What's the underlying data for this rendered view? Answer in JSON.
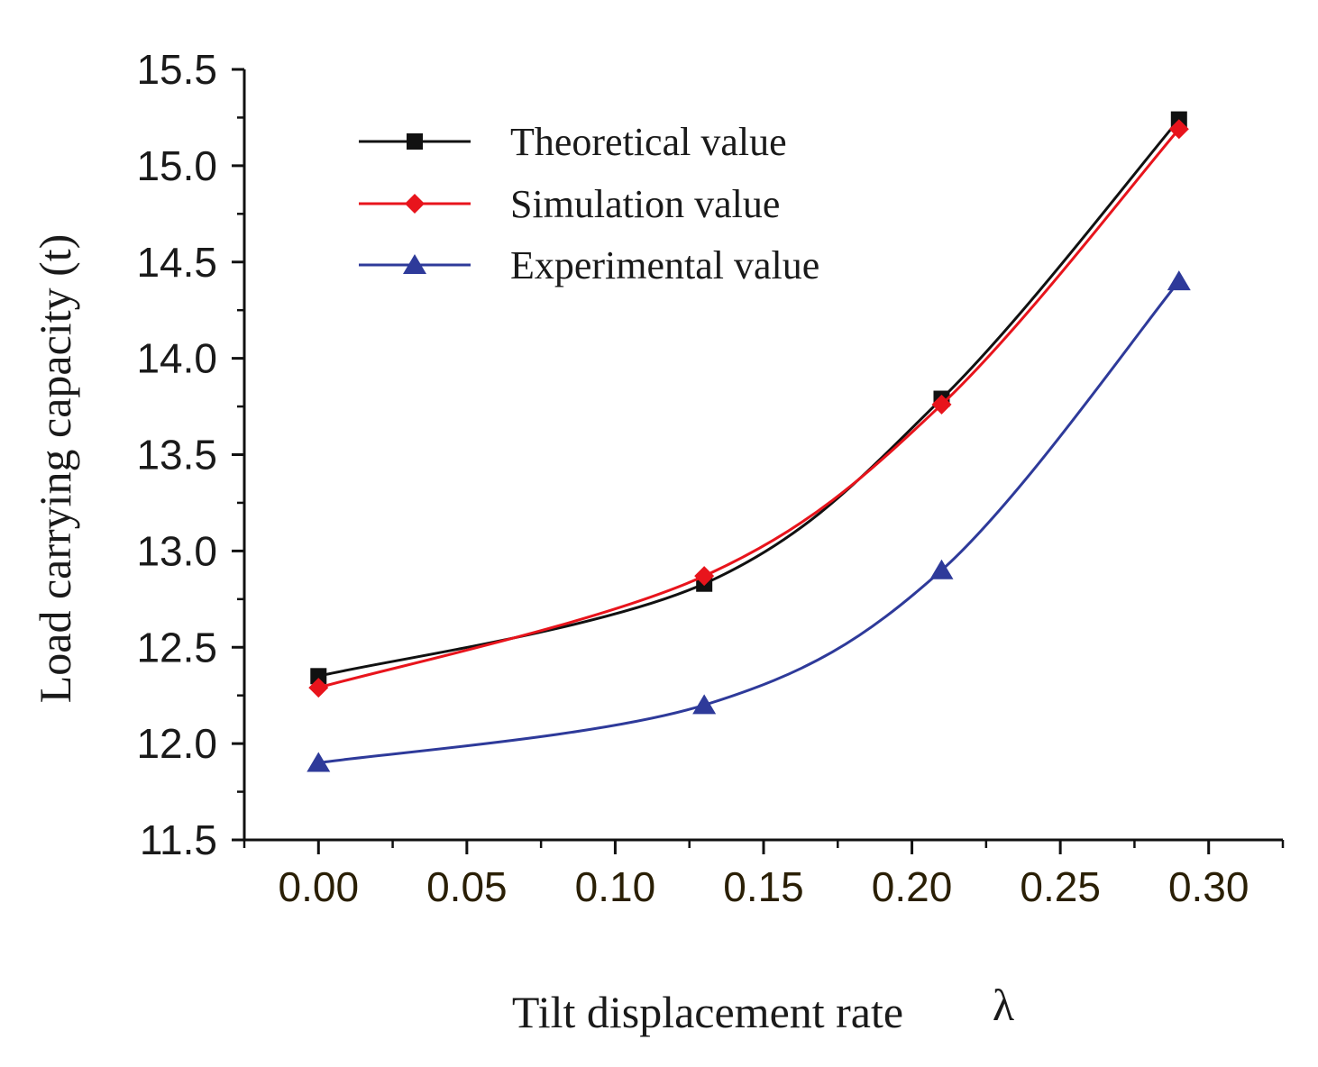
{
  "chart_data": {
    "type": "line",
    "title": "",
    "xlabel": "Tilt displacement rate",
    "xlabel_symbol": "λ",
    "ylabel": "Load carrying capacity (t)",
    "xlim": [
      -0.025,
      0.325
    ],
    "ylim": [
      11.5,
      15.5
    ],
    "xticks": [
      0.0,
      0.05,
      0.1,
      0.15,
      0.2,
      0.25,
      0.3
    ],
    "xtick_labels": [
      "0.00",
      "0.05",
      "0.10",
      "0.15",
      "0.20",
      "0.25",
      "0.30"
    ],
    "yticks": [
      11.5,
      12.0,
      12.5,
      13.0,
      13.5,
      14.0,
      14.5,
      15.0,
      15.5
    ],
    "ytick_labels": [
      "11.5",
      "12.0",
      "12.5",
      "13.0",
      "13.5",
      "14.0",
      "14.5",
      "15.0",
      "15.5"
    ],
    "grid": false,
    "legend_position": "top-left",
    "series": [
      {
        "name": "Theoretical value",
        "color": "#111111",
        "marker": "square",
        "x": [
          0.0,
          0.13,
          0.21,
          0.29
        ],
        "values": [
          12.35,
          12.83,
          13.79,
          15.24
        ]
      },
      {
        "name": "Simulation value",
        "color": "#e8141c",
        "marker": "diamond",
        "x": [
          0.0,
          0.13,
          0.21,
          0.29
        ],
        "values": [
          12.29,
          12.87,
          13.76,
          15.19
        ]
      },
      {
        "name": "Experimental value",
        "color": "#2e3a9a",
        "marker": "triangle",
        "x": [
          0.0,
          0.13,
          0.21,
          0.29
        ],
        "values": [
          11.9,
          12.2,
          12.9,
          14.4
        ]
      }
    ]
  }
}
